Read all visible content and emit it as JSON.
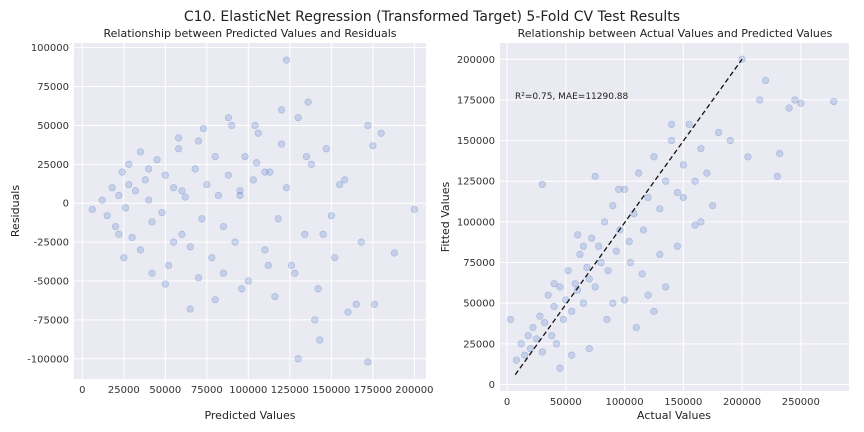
{
  "figure": {
    "suptitle": "C10. ElasticNet Regression (Transformed Target) 5-Fold CV Test Results"
  },
  "chart_data": [
    {
      "type": "scatter",
      "title": "Relationship between Predicted Values and Residuals",
      "xlabel": "Predicted Values",
      "ylabel": "Residuals",
      "xlim": [
        -5000,
        207000
      ],
      "ylim": [
        -113000,
        103000
      ],
      "xticks": [
        0,
        25000,
        50000,
        75000,
        100000,
        125000,
        150000,
        175000,
        200000
      ],
      "yticks": [
        -100000,
        -75000,
        -50000,
        -25000,
        0,
        25000,
        50000,
        75000,
        100000
      ],
      "grid": true,
      "point_color": "#4472c4",
      "series": [
        {
          "x": [
            6000,
            12000,
            15000,
            18000,
            20000,
            22000,
            24000,
            26000,
            28000,
            30000,
            32000,
            35000,
            38000,
            40000,
            42000,
            45000,
            48000,
            50000,
            52000,
            55000,
            58000,
            60000,
            62000,
            65000,
            68000,
            70000,
            72000,
            75000,
            78000,
            80000,
            82000,
            85000,
            88000,
            90000,
            92000,
            95000,
            98000,
            100000,
            103000,
            106000,
            110000,
            113000,
            116000,
            120000,
            123000,
            126000,
            130000,
            134000,
            138000,
            142000,
            147000,
            152000,
            158000,
            165000,
            172000,
            180000,
            188000,
            200000,
            22000,
            28000,
            35000,
            42000,
            50000,
            58000,
            65000,
            73000,
            80000,
            88000,
            96000,
            104000,
            112000,
            120000,
            128000,
            136000,
            145000,
            155000,
            168000,
            123000,
            130000,
            143000,
            172000,
            176000,
            55000,
            70000,
            95000,
            110000,
            140000,
            160000,
            175000,
            25000,
            40000,
            60000,
            85000,
            105000,
            118000,
            135000,
            150000
          ],
          "y": [
            -4000,
            2000,
            -8000,
            10000,
            -15000,
            5000,
            20000,
            -3000,
            12000,
            -22000,
            8000,
            -30000,
            15000,
            2000,
            -12000,
            28000,
            -6000,
            18000,
            -40000,
            10000,
            35000,
            -20000,
            4000,
            -28000,
            22000,
            40000,
            -10000,
            12000,
            -35000,
            30000,
            5000,
            -45000,
            18000,
            50000,
            -25000,
            8000,
            30000,
            -50000,
            15000,
            45000,
            -30000,
            20000,
            -60000,
            38000,
            10000,
            -40000,
            55000,
            -20000,
            25000,
            -55000,
            35000,
            -35000,
            15000,
            -65000,
            50000,
            45000,
            -32000,
            -4000,
            -20000,
            25000,
            33000,
            -45000,
            -52000,
            42000,
            -68000,
            48000,
            -62000,
            55000,
            -55000,
            50000,
            -40000,
            60000,
            -45000,
            65000,
            -20000,
            12000,
            -25000,
            92000,
            -100000,
            -88000,
            -102000,
            -65000,
            -25000,
            -48000,
            5000,
            20000,
            -75000,
            -70000,
            37000,
            -35000,
            22000,
            8000,
            -15000,
            26000,
            -10000,
            30000,
            -8000
          ]
        }
      ]
    },
    {
      "type": "scatter",
      "title": "Relationship between Actual Values and Predicted Values",
      "xlabel": "Actual Values",
      "ylabel": "Fitted Values",
      "xlim": [
        -6000,
        291000
      ],
      "ylim": [
        -4000,
        210000
      ],
      "xticks": [
        0,
        50000,
        100000,
        150000,
        200000,
        250000
      ],
      "yticks": [
        0,
        25000,
        50000,
        75000,
        100000,
        125000,
        150000,
        175000,
        200000
      ],
      "grid": true,
      "annotation": "R²=0.75, MAE=11290.88",
      "reference_line": {
        "x": [
          7000,
          200000
        ],
        "y": [
          6000,
          200000
        ]
      },
      "point_color": "#4472c4",
      "series": [
        {
          "x": [
            3000,
            8000,
            12000,
            15000,
            18000,
            20000,
            22000,
            25000,
            28000,
            30000,
            32000,
            35000,
            38000,
            40000,
            42000,
            45000,
            48000,
            50000,
            52000,
            55000,
            58000,
            60000,
            62000,
            65000,
            68000,
            70000,
            72000,
            75000,
            78000,
            80000,
            83000,
            86000,
            90000,
            93000,
            96000,
            100000,
            104000,
            108000,
            112000,
            116000,
            120000,
            125000,
            130000,
            135000,
            140000,
            145000,
            150000,
            155000,
            160000,
            165000,
            170000,
            180000,
            190000,
            200000,
            205000,
            215000,
            220000,
            230000,
            232000,
            240000,
            245000,
            250000,
            278000,
            30000,
            45000,
            60000,
            75000,
            90000,
            105000,
            120000,
            135000,
            150000,
            165000,
            110000,
            125000,
            140000,
            55000,
            70000,
            85000,
            100000,
            115000,
            130000,
            145000,
            160000,
            175000,
            40000,
            65000,
            95000
          ],
          "y": [
            40000,
            15000,
            25000,
            18000,
            30000,
            22000,
            35000,
            28000,
            42000,
            20000,
            38000,
            55000,
            30000,
            48000,
            25000,
            60000,
            40000,
            52000,
            70000,
            45000,
            62000,
            58000,
            80000,
            50000,
            72000,
            65000,
            90000,
            60000,
            85000,
            75000,
            100000,
            70000,
            110000,
            82000,
            95000,
            120000,
            88000,
            105000,
            130000,
            95000,
            115000,
            140000,
            108000,
            125000,
            150000,
            118000,
            135000,
            160000,
            125000,
            145000,
            130000,
            155000,
            150000,
            200000,
            140000,
            175000,
            187000,
            128000,
            142000,
            170000,
            175000,
            173000,
            174000,
            123000,
            10000,
            92000,
            128000,
            50000,
            75000,
            55000,
            60000,
            115000,
            100000,
            35000,
            45000,
            160000,
            18000,
            22000,
            40000,
            52000,
            68000,
            80000,
            85000,
            98000,
            110000,
            62000,
            85000,
            120000
          ]
        }
      ]
    }
  ]
}
